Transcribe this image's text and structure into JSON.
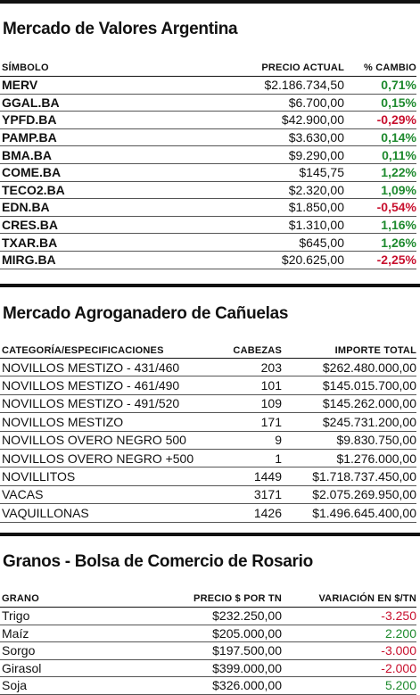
{
  "stocks": {
    "title": "Mercado de Valores Argentina",
    "headers": {
      "symbol": "SÍMBOLO",
      "price": "PRECIO ACTUAL",
      "change": "% CAMBIO"
    },
    "rows": [
      {
        "symbol": "MERV",
        "price": "$2.186.734,50",
        "change": "0,71%",
        "direction": "up"
      },
      {
        "symbol": "GGAL.BA",
        "price": "$6.700,00",
        "change": "0,15%",
        "direction": "up"
      },
      {
        "symbol": "YPFD.BA",
        "price": "$42.900,00",
        "change": "-0,29%",
        "direction": "down"
      },
      {
        "symbol": "PAMP.BA",
        "price": "$3.630,00",
        "change": "0,14%",
        "direction": "up"
      },
      {
        "symbol": "BMA.BA",
        "price": "$9.290,00",
        "change": "0,11%",
        "direction": "up"
      },
      {
        "symbol": "COME.BA",
        "price": "$145,75",
        "change": "1,22%",
        "direction": "up"
      },
      {
        "symbol": "TECO2.BA",
        "price": "$2.320,00",
        "change": "1,09%",
        "direction": "up"
      },
      {
        "symbol": "EDN.BA",
        "price": "$1.850,00",
        "change": "-0,54%",
        "direction": "down"
      },
      {
        "symbol": "CRES.BA",
        "price": "$1.310,00",
        "change": "1,16%",
        "direction": "up"
      },
      {
        "symbol": "TXAR.BA",
        "price": "$645,00",
        "change": "1,26%",
        "direction": "up"
      },
      {
        "symbol": "MIRG.BA",
        "price": "$20.625,00",
        "change": "-2,25%",
        "direction": "down"
      }
    ]
  },
  "cattle": {
    "title": "Mercado Agroganadero de Cañuelas",
    "headers": {
      "category": "CATEGORÍA/ESPECIFICACIONES",
      "heads": "CABEZAS",
      "total": "IMPORTE TOTAL"
    },
    "rows": [
      {
        "category": "NOVILLOS MESTIZO - 431/460",
        "heads": "203",
        "total": "$262.480.000,00"
      },
      {
        "category": "NOVILLOS MESTIZO - 461/490",
        "heads": "101",
        "total": "$145.015.700,00"
      },
      {
        "category": "NOVILLOS MESTIZO - 491/520",
        "heads": "109",
        "total": "$145.262.000,00"
      },
      {
        "category": "NOVILLOS MESTIZO",
        "heads": "171",
        "total": "$245.731.200,00"
      },
      {
        "category": "NOVILLOS OVERO NEGRO 500",
        "heads": "9",
        "total": "$9.830.750,00"
      },
      {
        "category": "NOVILLOS OVERO NEGRO +500",
        "heads": "1",
        "total": "$1.276.000,00"
      },
      {
        "category": "NOVILLITOS",
        "heads": "1449",
        "total": "$1.718.737.450,00"
      },
      {
        "category": "VACAS",
        "heads": "3171",
        "total": "$2.075.269.950,00"
      },
      {
        "category": "VAQUILLONAS",
        "heads": "1426",
        "total": "$1.496.645.400,00"
      }
    ]
  },
  "grains": {
    "title": "Granos - Bolsa de Comercio de Rosario",
    "headers": {
      "grain": "GRANO",
      "price": "PRECIO $ POR TN",
      "variation": "VARIACIÓN EN $/TN"
    },
    "rows": [
      {
        "grain": "Trigo",
        "price": "$232.250,00",
        "variation": "-3.250",
        "direction": "down"
      },
      {
        "grain": "Maíz",
        "price": "$205.000,00",
        "variation": "2.200",
        "direction": "up"
      },
      {
        "grain": "Sorgo",
        "price": "$197.500,00",
        "variation": "-3.000",
        "direction": "down"
      },
      {
        "grain": "Girasol",
        "price": "$399.000,00",
        "variation": "-2.000",
        "direction": "down"
      },
      {
        "grain": "Soja",
        "price": "$326.000,00",
        "variation": "5.200",
        "direction": "up"
      }
    ]
  },
  "colors": {
    "up": "#1e8a2e",
    "down": "#c8102e",
    "text": "#111111"
  }
}
